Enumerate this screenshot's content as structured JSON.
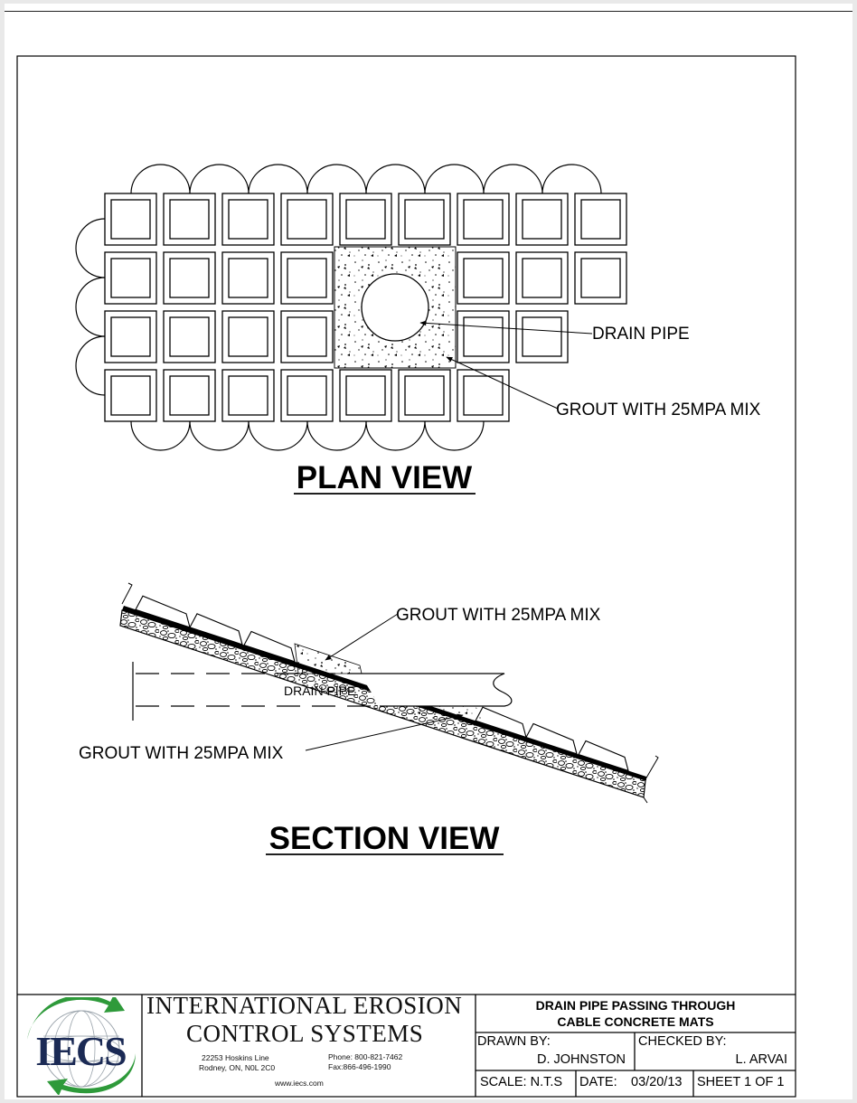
{
  "plan_view": {
    "title": "PLAN VIEW",
    "callouts": {
      "drain_pipe": "DRAIN PIPE",
      "grout": "GROUT WITH 25MPA MIX"
    }
  },
  "section_view": {
    "title": "SECTION VIEW",
    "callouts": {
      "grout_upper": "GROUT WITH 25MPA MIX",
      "drain_pipe": "DRAIN PIPE",
      "grout_lower": "GROUT WITH 25MPA MIX"
    }
  },
  "title_block": {
    "logo_text": "IECS",
    "company_line1": "INTERNATIONAL EROSION",
    "company_line2": "CONTROL SYSTEMS",
    "address_line1": "22253 Hoskins Line",
    "address_line2": "Rodney, ON, N0L 2C0",
    "phone": "Phone: 800-821-7462",
    "fax": "Fax:866-496-1990",
    "website": "www.iecs.com",
    "drawing_title_line1": "DRAIN PIPE PASSING THROUGH",
    "drawing_title_line2": "CABLE CONCRETE MATS",
    "drawn_by_label": "DRAWN BY:",
    "drawn_by": "D. JOHNSTON",
    "checked_by_label": "CHECKED BY:",
    "checked_by": "L. ARVAI",
    "scale": "SCALE: N.T.S",
    "date_label": "DATE:",
    "date": "03/20/13",
    "sheet": "SHEET 1 OF 1"
  },
  "colors": {
    "line": "#000000",
    "paper": "#ffffff",
    "logo_green": "#2e9a3a",
    "logo_navy": "#1b2a55"
  }
}
